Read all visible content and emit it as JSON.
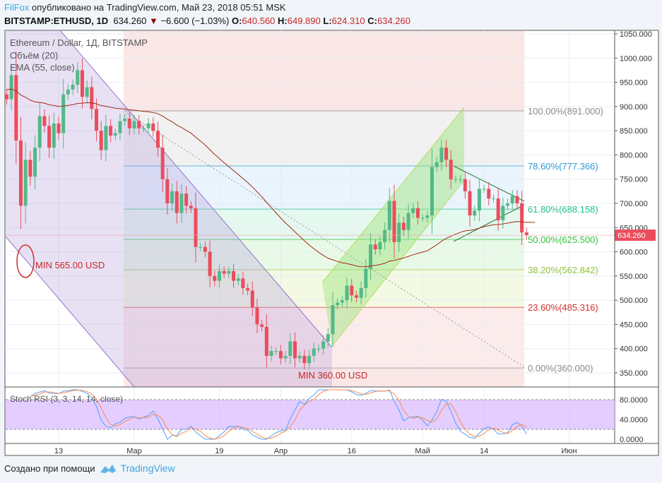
{
  "header": {
    "user": "FilFox",
    "published": "опубликовано на TradingView.com, Май 23, 2018 05:51 MSK",
    "symbol": "BITSTAMP:ETHUSD, 1D",
    "price": "634.260",
    "change": "−6.600 (−1.03%)",
    "o_label": "O:",
    "o": "640.560",
    "h_label": "H:",
    "h": "649.890",
    "l_label": "L:",
    "l": "624.310",
    "c_label": "C:",
    "c": "634.260"
  },
  "legend": {
    "title": "Ethereum / Dollar, 1Д, BITSTAMP",
    "volume": "Объём (20)",
    "ema": "EMA (55, close)",
    "stoch": "Stoch RSI (3, 3, 14, 14, close)"
  },
  "annotations": {
    "min1": "MIN 565.00 USD",
    "min2": "MIN 360.00 USD",
    "last_price": "634.260"
  },
  "footer": {
    "created": "Создано при помощи",
    "brand": "TradingView"
  },
  "colors": {
    "up": "#53b987",
    "down": "#eb4d5c",
    "ema": "#a52a16",
    "k": "#4ea0ff",
    "d": "#ff8a4c",
    "band": "#d9b8ff"
  },
  "chart_data": {
    "type": "candlestick",
    "ylim": [
      330,
      1060
    ],
    "y_ticks": [
      "1050.000",
      "1000.000",
      "950.000",
      "900.000",
      "850.000",
      "800.000",
      "750.000",
      "700.000",
      "650.000",
      "600.000",
      "550.000",
      "500.000",
      "450.000",
      "400.000",
      "350.000"
    ],
    "x_ticks": [
      {
        "label": "13",
        "date": "2018-02-13"
      },
      {
        "label": "Мар",
        "date": "2018-03-01"
      },
      {
        "label": "19",
        "date": "2018-03-19"
      },
      {
        "label": "Апр",
        "date": "2018-04-01"
      },
      {
        "label": "16",
        "date": "2018-04-16"
      },
      {
        "label": "Май",
        "date": "2018-05-01"
      },
      {
        "label": "14",
        "date": "2018-05-14"
      },
      {
        "label": "Июн",
        "date": "2018-06-01"
      }
    ],
    "stoch_ticks": [
      "80.0000",
      "40.0000",
      "0.0000"
    ],
    "stoch_band": [
      20,
      80
    ],
    "fib": [
      {
        "label": "100.00%(891.000)",
        "price": 891,
        "color": "#8a8a8a"
      },
      {
        "label": "78.60%(777.366)",
        "price": 777.366,
        "color": "#2b9ad6"
      },
      {
        "label": "61.80%(688.158)",
        "price": 688.158,
        "color": "#1fbf8f"
      },
      {
        "label": "50.00%(625.500)",
        "price": 625.5,
        "color": "#2ec43a"
      },
      {
        "label": "38.20%(562.842)",
        "price": 562.842,
        "color": "#8fc23a"
      },
      {
        "label": "23.60%(485.316)",
        "price": 485.316,
        "color": "#d32f2f"
      },
      {
        "label": "0.00%(360.000)",
        "price": 360,
        "color": "#8a8a8a"
      }
    ],
    "first_date": "2018-02-02",
    "close": [
      915,
      965,
      830,
      695,
      790,
      755,
      815,
      880,
      860,
      815,
      865,
      845,
      925,
      935,
      945,
      975,
      920,
      940,
      895,
      850,
      810,
      860,
      840,
      845,
      870,
      875,
      855,
      870,
      855,
      855,
      865,
      850,
      815,
      750,
      700,
      725,
      680,
      720,
      695,
      690,
      610,
      610,
      600,
      550,
      540,
      560,
      555,
      560,
      540,
      545,
      525,
      520,
      485,
      450,
      445,
      385,
      395,
      395,
      380,
      385,
      415,
      380,
      385,
      370,
      385,
      400,
      400,
      415,
      430,
      490,
      495,
      500,
      530,
      510,
      505,
      525,
      565,
      615,
      605,
      620,
      645,
      705,
      620,
      660,
      645,
      680,
      690,
      670,
      670,
      675,
      775,
      785,
      815,
      790,
      750,
      750,
      750,
      725,
      675,
      685,
      730,
      730,
      710,
      710,
      665,
      695,
      700,
      715,
      700,
      640,
      634.26
    ]
  }
}
